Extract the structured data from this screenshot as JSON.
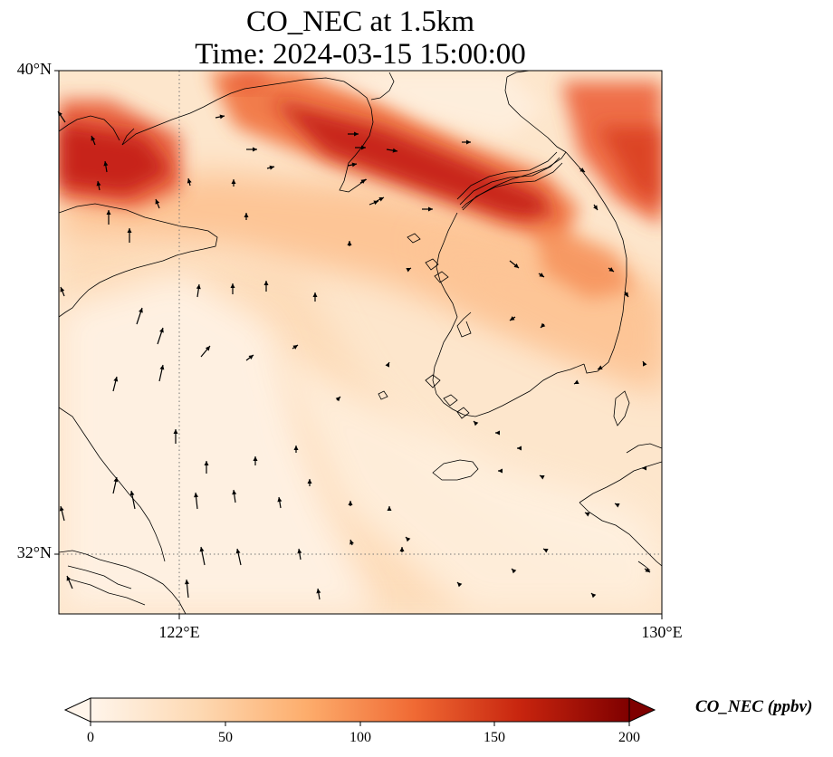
{
  "title_line1": "CO_NEC at 1.5km",
  "title_line2": "Time: 2024-03-15 15:00:00",
  "lat_labels": [
    "40°N",
    "32°N"
  ],
  "lon_labels": [
    "122°E",
    "130°E"
  ],
  "colorbar": {
    "label": "CO_NEC (ppbv)",
    "ticks": [
      "0",
      "50",
      "100",
      "150",
      "200"
    ],
    "colors": [
      "#fff5eb",
      "#fdd9b3",
      "#fdad6c",
      "#f06a34",
      "#c7240e",
      "#7f0000"
    ]
  },
  "map_colors": {
    "low": "#fff5eb",
    "mid": "#fdd0a2",
    "high": "#c41e13"
  },
  "coastline_color": "#000000"
}
